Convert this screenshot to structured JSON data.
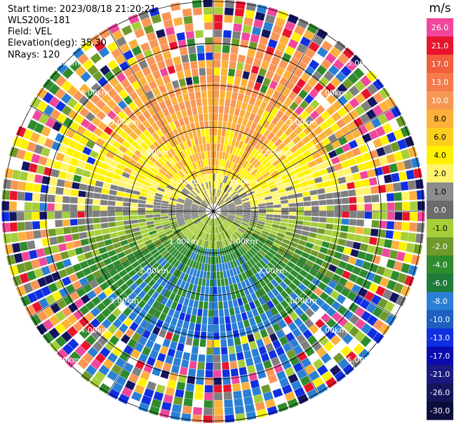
{
  "header": {
    "start_time": "Start time: 2023/08/18 21:20:21",
    "site": "WLS200s-181",
    "field": "Field: VEL",
    "elevation": "Elevation(deg): 35.30",
    "nrays": "NRays: 120"
  },
  "colorbar": {
    "unit_label": "m/s",
    "bins": [
      {
        "label": "26.0",
        "color": "#f0479b"
      },
      {
        "label": "21.0",
        "color": "#e8142d"
      },
      {
        "label": "17.0",
        "color": "#f25e3b"
      },
      {
        "label": "13.0",
        "color": "#f47b4a"
      },
      {
        "label": "10.0",
        "color": "#f99656"
      },
      {
        "label": "8.0",
        "color": "#fbb13a"
      },
      {
        "label": "6.0",
        "color": "#fcce1e"
      },
      {
        "label": "4.0",
        "color": "#fff200"
      },
      {
        "label": "2.0",
        "color": "#fff46b"
      },
      {
        "label": "1.0",
        "color": "#8c8c8c"
      },
      {
        "label": "0.0",
        "color": "#6b6b6b"
      },
      {
        "label": "-1.0",
        "color": "#a6ce39"
      },
      {
        "label": "-2.0",
        "color": "#6f9a2b"
      },
      {
        "label": "-4.0",
        "color": "#2e8b2e"
      },
      {
        "label": "-6.0",
        "color": "#1e7b3a"
      },
      {
        "label": "-8.0",
        "color": "#2a7fd4"
      },
      {
        "label": "-10.0",
        "color": "#1f5fbf"
      },
      {
        "label": "-13.0",
        "color": "#0f2fe0"
      },
      {
        "label": "-17.0",
        "color": "#0b0bb0"
      },
      {
        "label": "-21.0",
        "color": "#1a1a80"
      },
      {
        "label": "-26.0",
        "color": "#15155e"
      },
      {
        "label": "-30.0",
        "color": "#0d0d3d"
      }
    ],
    "palette": {
      "pink": "#f0479b",
      "red": "#e8142d",
      "orange": "#f99656",
      "amber": "#fbb13a",
      "yellow": "#fff200",
      "lightyellow": "#fff46b",
      "gray": "#7f7f7f",
      "lightgreen": "#a6ce39",
      "olive": "#6f9a2b",
      "green": "#2e8b2e",
      "blue": "#2a7fd4",
      "deepblue": "#0f2fe0",
      "navy": "#15155e"
    }
  },
  "chart_data": {
    "type": "ppi",
    "field": "VEL",
    "units": "m/s",
    "nrays": 120,
    "max_range_km": 5.0,
    "range_rings": [
      {
        "km": 1.0,
        "label": "1.00km"
      },
      {
        "km": 2.0,
        "label": "2.00km"
      },
      {
        "km": 3.0,
        "label": "3.00km"
      },
      {
        "km": 4.0,
        "label": "4.00km"
      },
      {
        "km": 5.0,
        "label": "5.00km"
      }
    ],
    "spokes_deg": [
      0,
      30,
      60,
      90,
      120,
      150
    ],
    "velocity_pattern": {
      "north_sector": "positive 8 to 13 m/s (orange)",
      "mid_north": "positive 2 to 6 m/s (yellow)",
      "near_center": "0 to 1 m/s (gray)",
      "south_sector": "negative -2 to -10 m/s (green/blue)",
      "outer_ring": "noisy mixed values"
    }
  }
}
